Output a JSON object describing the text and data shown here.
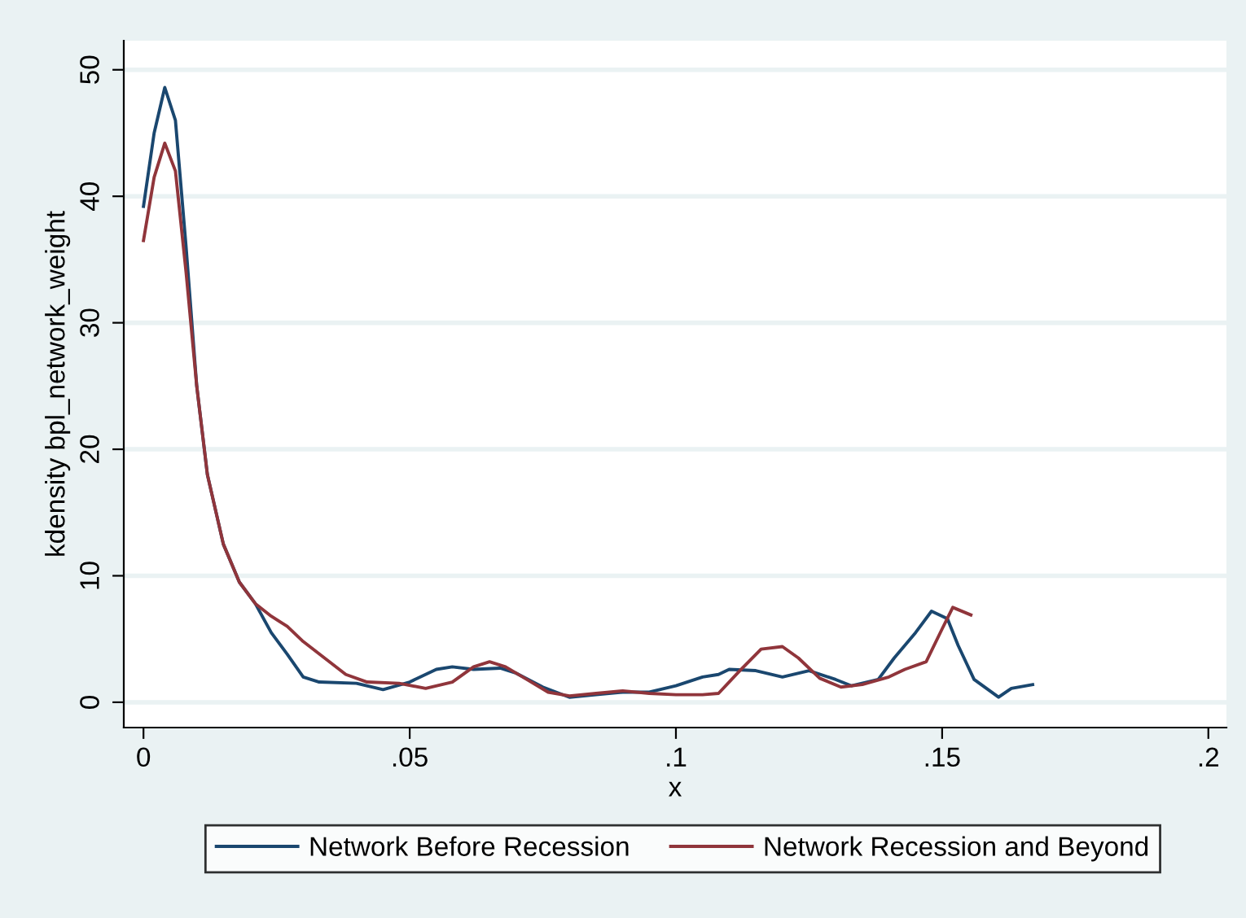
{
  "chart_data": {
    "type": "line",
    "xlabel": "x",
    "ylabel": "kdensity bpl_network_weight",
    "xlim": [
      -0.0037,
      0.2034
    ],
    "xticks": [
      {
        "value": 0,
        "label": "0"
      },
      {
        "value": 0.05,
        "label": ".05"
      },
      {
        "value": 0.1,
        "label": ".1"
      },
      {
        "value": 0.15,
        "label": ".15"
      },
      {
        "value": 0.2,
        "label": ".2"
      }
    ],
    "ylim": [
      -2,
      52.3
    ],
    "yticks": [
      0,
      10,
      20,
      30,
      40,
      50
    ],
    "grid": "y",
    "legend": "bottom",
    "marker": "none",
    "line_style": "solid",
    "series": [
      {
        "name": "Network Before Recession",
        "color": "#1a476f",
        "x": [
          0,
          0.002,
          0.004,
          0.006,
          0.008,
          0.01,
          0.012,
          0.015,
          0.018,
          0.021,
          0.024,
          0.027,
          0.03,
          0.033,
          0.04,
          0.045,
          0.05,
          0.055,
          0.058,
          0.062,
          0.067,
          0.07,
          0.075,
          0.08,
          0.085,
          0.09,
          0.095,
          0.1,
          0.105,
          0.108,
          0.11,
          0.115,
          0.12,
          0.125,
          0.13,
          0.133,
          0.138,
          0.141,
          0.145,
          0.148,
          0.151,
          0.153,
          0.156,
          0.1606,
          0.163,
          0.167
        ],
        "values": [
          39.2,
          45,
          48.6,
          46,
          36,
          25,
          18,
          12.5,
          9.5,
          7.8,
          5.5,
          3.8,
          2,
          1.6,
          1.5,
          1.0,
          1.6,
          2.6,
          2.8,
          2.6,
          2.7,
          2.3,
          1.2,
          0.4,
          0.6,
          0.8,
          0.8,
          1.3,
          2.0,
          2.2,
          2.6,
          2.5,
          2.0,
          2.5,
          1.8,
          1.3,
          1.8,
          3.5,
          5.5,
          7.2,
          6.6,
          4.5,
          1.8,
          0.4,
          1.1,
          1.4
        ]
      },
      {
        "name": "Network Recession and Beyond",
        "color": "#90353b",
        "x": [
          0,
          0.002,
          0.004,
          0.006,
          0.008,
          0.01,
          0.012,
          0.015,
          0.018,
          0.021,
          0.024,
          0.027,
          0.03,
          0.034,
          0.038,
          0.042,
          0.048,
          0.053,
          0.058,
          0.062,
          0.065,
          0.068,
          0.072,
          0.076,
          0.08,
          0.085,
          0.09,
          0.095,
          0.1,
          0.105,
          0.108,
          0.112,
          0.116,
          0.12,
          0.123,
          0.127,
          0.131,
          0.135,
          0.14,
          0.143,
          0.147,
          0.15,
          0.152,
          0.1554
        ],
        "values": [
          36.5,
          41.5,
          44.2,
          42,
          34,
          25,
          18,
          12.5,
          9.5,
          7.8,
          6.8,
          6.0,
          4.8,
          3.5,
          2.2,
          1.6,
          1.5,
          1.1,
          1.6,
          2.8,
          3.2,
          2.8,
          1.8,
          0.8,
          0.5,
          0.7,
          0.9,
          0.7,
          0.6,
          0.6,
          0.7,
          2.5,
          4.2,
          4.4,
          3.5,
          1.9,
          1.2,
          1.4,
          2.0,
          2.6,
          3.2,
          5.8,
          7.5,
          6.9
        ]
      }
    ]
  }
}
